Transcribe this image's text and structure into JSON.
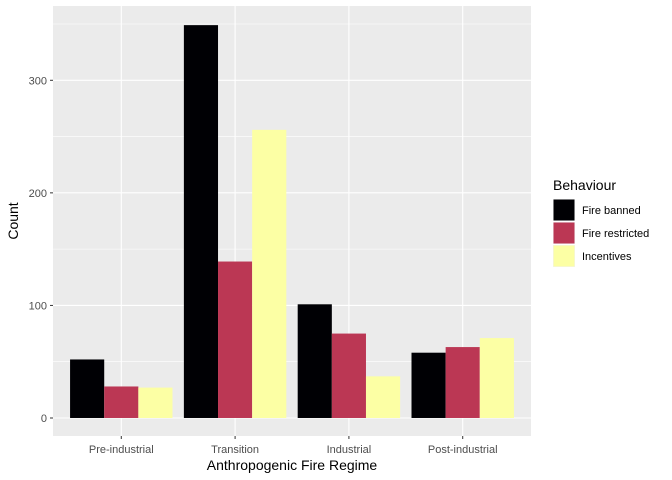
{
  "chart_data": {
    "type": "bar",
    "xlabel": "Anthropogenic Fire Regime",
    "ylabel": "Count",
    "categories": [
      "Pre-industrial",
      "Transition",
      "Industrial",
      "Post-industrial"
    ],
    "series": [
      {
        "name": "Fire banned",
        "values": [
          52,
          349,
          101,
          58
        ],
        "color": "#000004"
      },
      {
        "name": "Fire restricted",
        "values": [
          28,
          139,
          75,
          63
        ],
        "color": "#BB3754"
      },
      {
        "name": "Incentives",
        "values": [
          27,
          256,
          37,
          71
        ],
        "color": "#FCFFA4"
      }
    ],
    "ylim": [
      -16,
      366
    ],
    "yticks": [
      0,
      100,
      200,
      300
    ],
    "legend": {
      "title": "Behaviour",
      "position": "right"
    },
    "grid": true,
    "panel_background": "#EBEBEB",
    "grid_color": "#FFFFFF"
  }
}
